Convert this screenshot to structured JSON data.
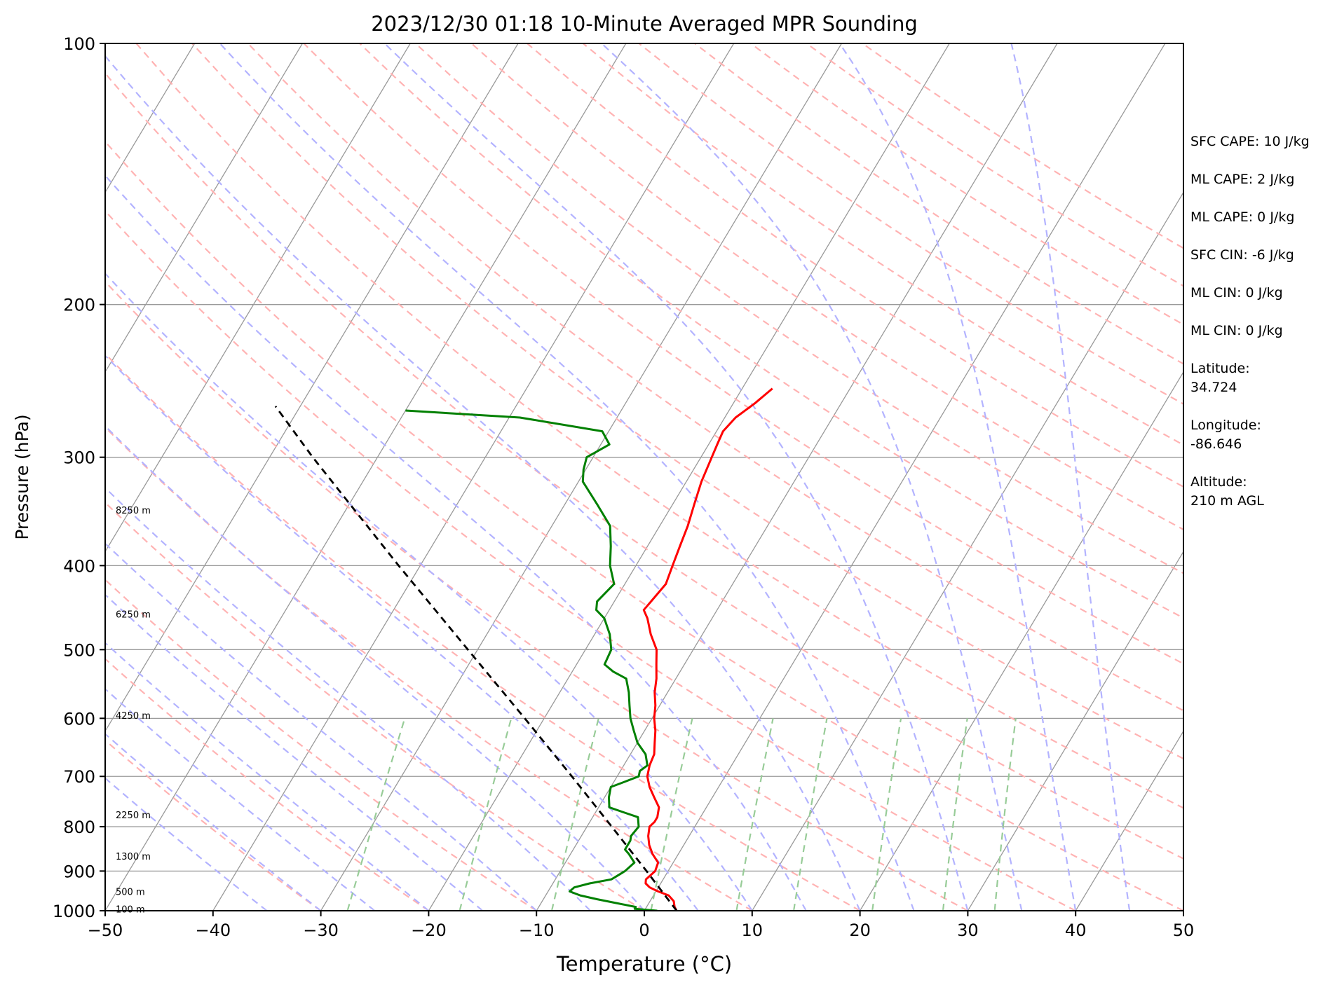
{
  "chart_data": {
    "type": "line",
    "title": "2023/12/30 01:18 10-Minute Averaged MPR Sounding",
    "xlabel": "Temperature (°C)",
    "ylabel": "Pressure (hPa)",
    "xlim": [
      -50,
      50
    ],
    "ylim": [
      1000,
      100
    ],
    "y_scale": "log",
    "grid": true,
    "x_ticks": [
      -50,
      -40,
      -30,
      -20,
      -10,
      0,
      10,
      20,
      30,
      40,
      50
    ],
    "x_tick_labels": [
      "−50",
      "−40",
      "−30",
      "−20",
      "−10",
      "0",
      "10",
      "20",
      "30",
      "40",
      "50"
    ],
    "y_ticks": [
      1000,
      900,
      800,
      700,
      600,
      500,
      400,
      300,
      200,
      100
    ],
    "y_tick_labels": [
      "1000",
      "900",
      "800",
      "700",
      "600",
      "500",
      "400",
      "300",
      "200",
      "100"
    ],
    "height_labels": [
      {
        "text": "100 m",
        "p": 995
      },
      {
        "text": "500 m",
        "p": 950
      },
      {
        "text": "1300 m",
        "p": 865
      },
      {
        "text": "2250 m",
        "p": 775
      },
      {
        "text": "4250 m",
        "p": 595
      },
      {
        "text": "6250 m",
        "p": 455
      },
      {
        "text": "8250 m",
        "p": 345
      }
    ],
    "series": [
      {
        "color": "#ff0000",
        "points": [
          [
            1000,
            3.0
          ],
          [
            990,
            2.6
          ],
          [
            975,
            2.2
          ],
          [
            960,
            1.4
          ],
          [
            950,
            0.2
          ],
          [
            940,
            -0.8
          ],
          [
            930,
            -1.4
          ],
          [
            920,
            -1.6
          ],
          [
            900,
            -1.2
          ],
          [
            880,
            -1.4
          ],
          [
            860,
            -2.4
          ],
          [
            840,
            -3.2
          ],
          [
            820,
            -3.8
          ],
          [
            800,
            -4.2
          ],
          [
            790,
            -4.0
          ],
          [
            780,
            -4.0
          ],
          [
            760,
            -4.4
          ],
          [
            740,
            -5.4
          ],
          [
            720,
            -6.4
          ],
          [
            700,
            -7.2
          ],
          [
            680,
            -7.6
          ],
          [
            660,
            -7.8
          ],
          [
            640,
            -8.4
          ],
          [
            620,
            -9.0
          ],
          [
            600,
            -9.8
          ],
          [
            580,
            -10.4
          ],
          [
            560,
            -11.2
          ],
          [
            540,
            -11.8
          ],
          [
            520,
            -12.6
          ],
          [
            500,
            -13.4
          ],
          [
            480,
            -14.8
          ],
          [
            460,
            -16.0
          ],
          [
            450,
            -16.8
          ],
          [
            440,
            -16.6
          ],
          [
            420,
            -16.2
          ],
          [
            400,
            -16.6
          ],
          [
            380,
            -17.0
          ],
          [
            360,
            -17.4
          ],
          [
            340,
            -18.0
          ],
          [
            320,
            -18.6
          ],
          [
            300,
            -19.0
          ],
          [
            290,
            -19.2
          ],
          [
            280,
            -19.4
          ],
          [
            270,
            -19.0
          ],
          [
            260,
            -18.0
          ],
          [
            250,
            -17.2
          ]
        ]
      },
      {
        "color": "#008000",
        "points": [
          [
            1000,
            1.2
          ],
          [
            995,
            -1.0
          ],
          [
            990,
            -1.0
          ],
          [
            980,
            -3.0
          ],
          [
            970,
            -5.0
          ],
          [
            960,
            -6.8
          ],
          [
            950,
            -8.0
          ],
          [
            940,
            -7.8
          ],
          [
            930,
            -6.6
          ],
          [
            920,
            -4.8
          ],
          [
            900,
            -4.0
          ],
          [
            880,
            -3.6
          ],
          [
            860,
            -4.6
          ],
          [
            850,
            -5.2
          ],
          [
            830,
            -5.2
          ],
          [
            820,
            -5.4
          ],
          [
            800,
            -5.2
          ],
          [
            780,
            -5.8
          ],
          [
            770,
            -7.4
          ],
          [
            760,
            -9.0
          ],
          [
            740,
            -9.6
          ],
          [
            720,
            -10.0
          ],
          [
            710,
            -9.0
          ],
          [
            700,
            -8.0
          ],
          [
            690,
            -8.2
          ],
          [
            680,
            -7.8
          ],
          [
            660,
            -8.6
          ],
          [
            640,
            -10.0
          ],
          [
            620,
            -11.0
          ],
          [
            600,
            -12.0
          ],
          [
            580,
            -12.8
          ],
          [
            560,
            -13.6
          ],
          [
            540,
            -14.6
          ],
          [
            530,
            -16.2
          ],
          [
            520,
            -17.4
          ],
          [
            500,
            -17.6
          ],
          [
            480,
            -18.6
          ],
          [
            460,
            -20.0
          ],
          [
            450,
            -21.2
          ],
          [
            440,
            -21.6
          ],
          [
            420,
            -21.0
          ],
          [
            400,
            -22.4
          ],
          [
            380,
            -23.4
          ],
          [
            360,
            -24.6
          ],
          [
            340,
            -27.0
          ],
          [
            320,
            -29.6
          ],
          [
            310,
            -30.2
          ],
          [
            300,
            -30.6
          ],
          [
            290,
            -29.2
          ],
          [
            280,
            -30.6
          ],
          [
            270,
            -39.0
          ],
          [
            265,
            -50.0
          ]
        ]
      },
      {
        "color": "#000000",
        "style": "dashed",
        "points": [
          [
            1000,
            3.0
          ],
          [
            900,
            -2.0
          ],
          [
            800,
            -7.7
          ],
          [
            700,
            -14.2
          ],
          [
            600,
            -21.8
          ],
          [
            500,
            -30.9
          ],
          [
            400,
            -42.0
          ],
          [
            300,
            -56.0
          ],
          [
            262,
            -62.3
          ]
        ]
      }
    ],
    "text_annotations": [
      {
        "text": "SFC CAPE: 10 J/kg"
      },
      {
        "text": "ML CAPE: 2 J/kg"
      },
      {
        "text": "ML CAPE: 0 J/kg"
      },
      {
        "text": "SFC CIN: -6 J/kg"
      },
      {
        "text": "ML CIN: 0 J/kg"
      },
      {
        "text": "ML CIN: 0 J/kg"
      },
      {
        "lines": [
          "Latitude:",
          "34.724"
        ]
      },
      {
        "lines": [
          "Longitude:",
          "-86.646"
        ]
      },
      {
        "lines": [
          "Altitude:",
          "210 m AGL"
        ]
      }
    ],
    "colors": {
      "temperature": "#ff0000",
      "dewpoint": "#008000",
      "parcel": "#000000",
      "dry_adiabats": "#ffb3b3",
      "moist_adiabats": "#b3b3ff",
      "mixing_ratio": "#98cc98",
      "isotherms": "#999999",
      "isobars": "#999999"
    }
  }
}
